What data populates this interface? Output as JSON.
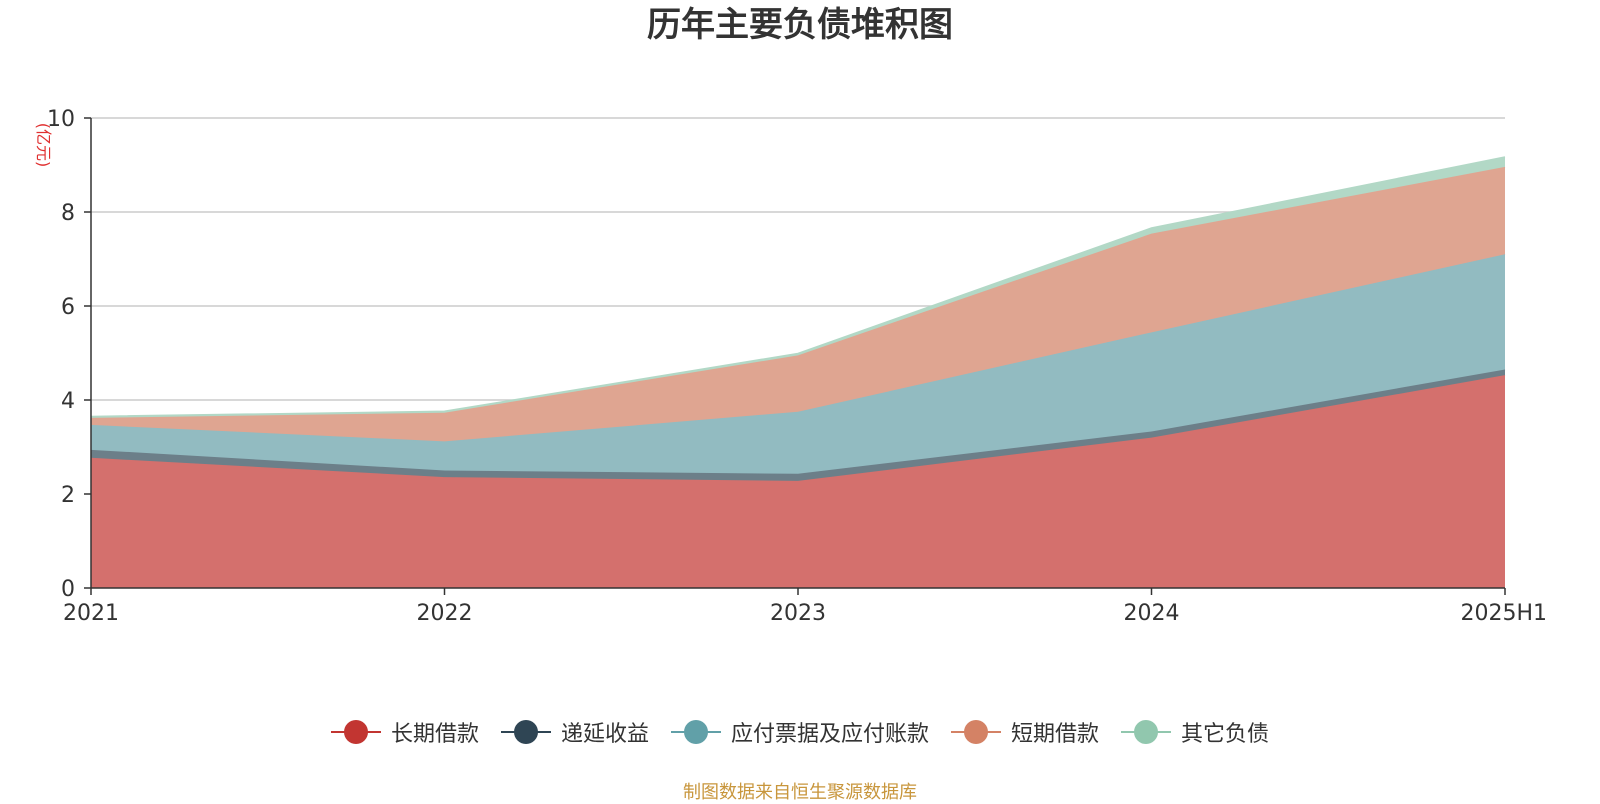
{
  "chart_data": {
    "type": "area",
    "stacked": true,
    "title": "历年主要负债堆积图",
    "ylabel": "(亿元)",
    "xlabel": "",
    "ylim": [
      0,
      10
    ],
    "yticks": [
      0,
      2,
      4,
      6,
      8,
      10
    ],
    "categories": [
      "2021",
      "2022",
      "2023",
      "2024",
      "2025H1"
    ],
    "series": [
      {
        "name": "长期借款",
        "color": "#c23531",
        "fill": "#d4706d",
        "values": [
          2.77,
          2.36,
          2.28,
          3.2,
          4.53
        ]
      },
      {
        "name": "递延收益",
        "color": "#2f4554",
        "fill": "#6c7f89",
        "values": [
          0.17,
          0.14,
          0.15,
          0.13,
          0.12
        ]
      },
      {
        "name": "应付票据及应付账款",
        "color": "#61a0a8",
        "fill": "#92bbc1",
        "values": [
          0.53,
          0.62,
          1.32,
          2.11,
          2.45
        ]
      },
      {
        "name": "短期借款",
        "color": "#d48265",
        "fill": "#dfa591",
        "values": [
          0.15,
          0.61,
          1.2,
          2.1,
          1.86
        ]
      },
      {
        "name": "其它负债",
        "color": "#91c7ae",
        "fill": "#b2d8c6",
        "values": [
          0.03,
          0.03,
          0.04,
          0.12,
          0.21
        ]
      }
    ],
    "legend_position": "bottom",
    "grid": true
  },
  "footer": {
    "source": "制图数据来自恒生聚源数据库"
  }
}
